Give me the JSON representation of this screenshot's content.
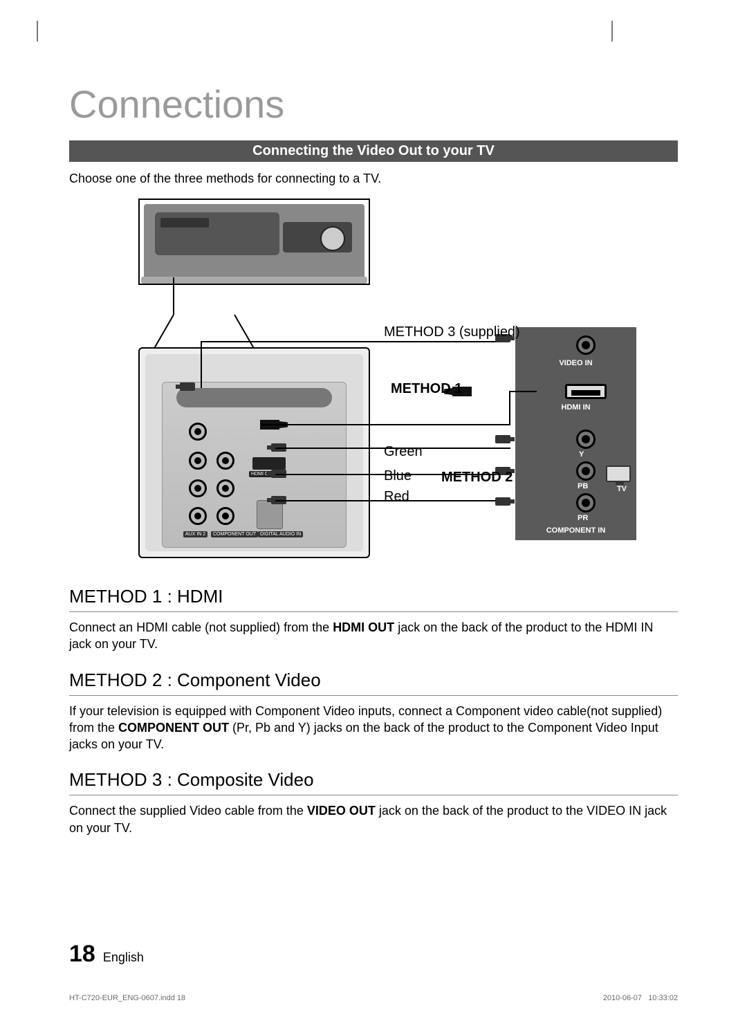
{
  "page": {
    "title": "Connections",
    "bar_title": "Connecting the Video Out to your TV",
    "intro": "Choose one of the three methods for connecting to a TV.",
    "page_number": "18",
    "language": "English",
    "file_meta_left": "HT-C720-EUR_ENG-0607.indd   18",
    "file_meta_date": "2010-06-07",
    "file_meta_time": "10:33:02"
  },
  "diagram": {
    "method3_supplied": "METHOD 3 (supplied)",
    "method1": "METHOD 1",
    "method2": "METHOD 2",
    "green": "Green",
    "blue": "Blue",
    "red": "Red",
    "backpanel": {
      "aux": "AUX IN 2",
      "component": "COMPONENT OUT",
      "digital_audio": "DIGITAL AUDIO IN",
      "hdmi_out": "HDMI OUT"
    },
    "tv": {
      "video_in": "VIDEO  IN",
      "hdmi_in": "HDMI IN",
      "y": "Y",
      "pb": "PB",
      "pr": "PR",
      "component_in": "COMPONENT  IN",
      "tv": "TV"
    },
    "styling": {
      "tv_bg": "#5a5a5a",
      "panel_bg": "#eee",
      "label_text_color": "#ffffff",
      "cable_color": "#000000"
    }
  },
  "sections": {
    "method1": {
      "title": "METHOD 1 : HDMI",
      "body_pre": "Connect an HDMI cable (not supplied) from the ",
      "body_bold": "HDMI OUT",
      "body_post": " jack on the back of the product to the HDMI IN jack on your TV."
    },
    "method2": {
      "title": "METHOD 2 : Component Video",
      "body_pre": "If your television is equipped with Component Video inputs, connect a Component video cable(not supplied) from the ",
      "body_bold": "COMPONENT OUT",
      "body_post": " (Pr, Pb and Y) jacks on the back of the product to the Component Video Input jacks on your TV."
    },
    "method3": {
      "title": "METHOD 3 : Composite Video",
      "body_pre": "Connect the supplied Video cable from the ",
      "body_bold": "VIDEO OUT",
      "body_post": " jack on the back of the product to the VIDEO IN jack on your TV."
    }
  }
}
